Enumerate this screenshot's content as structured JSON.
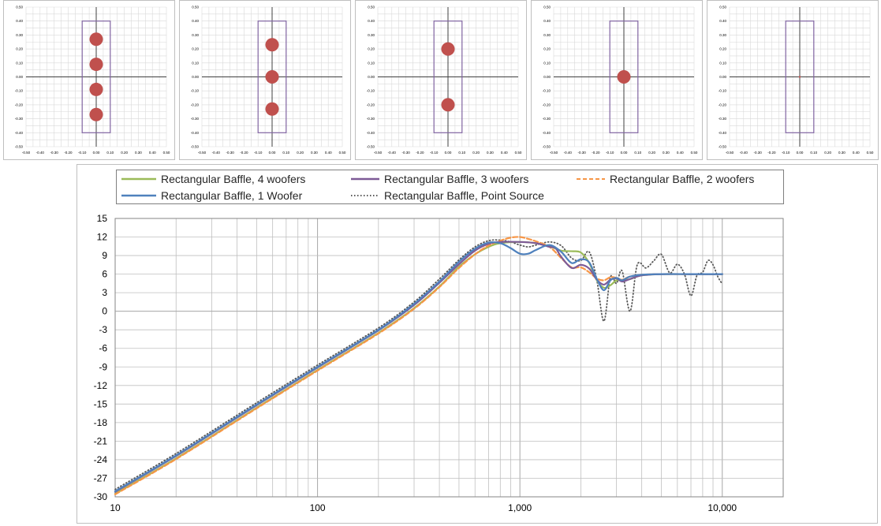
{
  "chart_data": [
    {
      "type": "scatter",
      "xlim": [
        -0.5,
        0.5
      ],
      "ylim": [
        -0.5,
        0.5
      ],
      "x_ticks": [
        "-0.50",
        "-0.40",
        "-0.30",
        "-0.20",
        "-0.10",
        "0.00",
        "0.10",
        "0.20",
        "0.30",
        "0.40",
        "0.50"
      ],
      "y_ticks": [
        "0.50",
        "0.40",
        "0.30",
        "0.20",
        "0.10",
        "0.00",
        "-0.10",
        "-0.20",
        "-0.30",
        "-0.40",
        "-0.50"
      ],
      "baffle_rect": {
        "x": [
          -0.1,
          0.1
        ],
        "y": [
          -0.4,
          0.4
        ]
      },
      "points": [
        {
          "x": 0,
          "y": 0.27
        },
        {
          "x": 0,
          "y": 0.09
        },
        {
          "x": 0,
          "y": -0.09
        },
        {
          "x": 0,
          "y": -0.27
        }
      ],
      "grid": true
    },
    {
      "type": "scatter",
      "xlim": [
        -0.5,
        0.5
      ],
      "ylim": [
        -0.5,
        0.5
      ],
      "x_ticks": [
        "-0.50",
        "-0.40",
        "-0.30",
        "-0.20",
        "-0.10",
        "0.00",
        "0.10",
        "0.20",
        "0.30",
        "0.40",
        "0.50"
      ],
      "y_ticks": [
        "0.50",
        "0.40",
        "0.30",
        "0.20",
        "0.10",
        "0.00",
        "-0.10",
        "-0.20",
        "-0.30",
        "-0.40",
        "-0.50"
      ],
      "baffle_rect": {
        "x": [
          -0.1,
          0.1
        ],
        "y": [
          -0.4,
          0.4
        ]
      },
      "points": [
        {
          "x": 0,
          "y": 0.23
        },
        {
          "x": 0,
          "y": 0.0
        },
        {
          "x": 0,
          "y": -0.23
        }
      ],
      "grid": true
    },
    {
      "type": "scatter",
      "xlim": [
        -0.5,
        0.5
      ],
      "ylim": [
        -0.5,
        0.5
      ],
      "x_ticks": [
        "-0.50",
        "-0.40",
        "-0.30",
        "-0.20",
        "-0.10",
        "0.00",
        "0.10",
        "0.20",
        "0.30",
        "0.40",
        "0.50"
      ],
      "y_ticks": [
        "0.50",
        "0.40",
        "0.30",
        "0.20",
        "0.10",
        "0.00",
        "-0.10",
        "-0.20",
        "-0.30",
        "-0.40",
        "-0.50"
      ],
      "baffle_rect": {
        "x": [
          -0.1,
          0.1
        ],
        "y": [
          -0.4,
          0.4
        ]
      },
      "points": [
        {
          "x": 0,
          "y": 0.2
        },
        {
          "x": 0,
          "y": -0.2
        }
      ],
      "grid": true
    },
    {
      "type": "scatter",
      "xlim": [
        -0.5,
        0.5
      ],
      "ylim": [
        -0.5,
        0.5
      ],
      "x_ticks": [
        "-0.50",
        "-0.40",
        "-0.30",
        "-0.20",
        "-0.10",
        "0.00",
        "0.10",
        "0.20",
        "0.30",
        "0.40",
        "0.50"
      ],
      "y_ticks": [
        "0.50",
        "0.40",
        "0.30",
        "0.20",
        "0.10",
        "0.00",
        "-0.10",
        "-0.20",
        "-0.30",
        "-0.40",
        "-0.50"
      ],
      "baffle_rect": {
        "x": [
          -0.1,
          0.1
        ],
        "y": [
          -0.4,
          0.4
        ]
      },
      "points": [
        {
          "x": 0,
          "y": 0.0
        }
      ],
      "grid": true
    },
    {
      "type": "scatter",
      "xlim": [
        -0.5,
        0.5
      ],
      "ylim": [
        -0.5,
        0.5
      ],
      "x_ticks": [
        "-0.50",
        "-0.40",
        "-0.30",
        "-0.20",
        "-0.10",
        "0.00",
        "0.10",
        "0.20",
        "0.30",
        "0.40",
        "0.50"
      ],
      "y_ticks": [
        "0.50",
        "0.40",
        "0.30",
        "0.20",
        "0.10",
        "0.00",
        "-0.10",
        "-0.20",
        "-0.30",
        "-0.40",
        "-0.50"
      ],
      "baffle_rect": {
        "x": [
          -0.1,
          0.1
        ],
        "y": [
          -0.4,
          0.4
        ]
      },
      "points": [],
      "grid": true
    },
    {
      "type": "line",
      "x_scale": "log",
      "xlim": [
        10,
        20000
      ],
      "ylim": [
        -30,
        15
      ],
      "x_tick_labels": [
        {
          "v": 10,
          "label": "10"
        },
        {
          "v": 100,
          "label": "100"
        },
        {
          "v": 1000,
          "label": "1,000"
        },
        {
          "v": 10000,
          "label": "10,000"
        }
      ],
      "y_ticks": [
        15,
        12,
        9,
        6,
        3,
        0,
        -3,
        -6,
        -9,
        -12,
        -15,
        -18,
        -21,
        -24,
        -27,
        -30
      ],
      "grid": true,
      "legend_position": "top",
      "legend": [
        {
          "name": "Rectangular Baffle, 4 woofers",
          "color": "#9bbb59",
          "dash": "solid"
        },
        {
          "name": "Rectangular Baffle, 3 woofers",
          "color": "#7d5a96",
          "dash": "solid"
        },
        {
          "name": "Rectangular Baffle, 2 woofers",
          "color": "#f79646",
          "dash": "dashed"
        },
        {
          "name": "Rectangular Baffle, 1 Woofer",
          "color": "#4f81bd",
          "dash": "solid"
        },
        {
          "name": "Rectangular Baffle, Point Source",
          "color": "#595959",
          "dash": "dotted"
        }
      ],
      "series": [
        {
          "name": "Rectangular Baffle, 4 woofers",
          "color": "#9bbb59",
          "dash": "solid",
          "points": [
            [
              10,
              -29.5
            ],
            [
              20,
              -23.8
            ],
            [
              50,
              -15.6
            ],
            [
              100,
              -9.5
            ],
            [
              200,
              -3.5
            ],
            [
              300,
              0.5
            ],
            [
              400,
              4
            ],
            [
              500,
              7.2
            ],
            [
              600,
              9.2
            ],
            [
              700,
              10.4
            ],
            [
              800,
              11
            ],
            [
              1000,
              11.2
            ],
            [
              1200,
              11
            ],
            [
              1400,
              10.5
            ],
            [
              1600,
              9.8
            ],
            [
              1800,
              9.7
            ],
            [
              2000,
              9.5
            ],
            [
              2200,
              7.8
            ],
            [
              2400,
              5
            ],
            [
              2600,
              3.8
            ],
            [
              2800,
              4.2
            ],
            [
              3000,
              5
            ],
            [
              3200,
              5
            ],
            [
              3500,
              5.2
            ],
            [
              4000,
              5.8
            ],
            [
              5000,
              6
            ],
            [
              7000,
              6
            ],
            [
              10000,
              6
            ]
          ]
        },
        {
          "name": "Rectangular Baffle, 3 woofers",
          "color": "#7d5a96",
          "dash": "solid",
          "points": [
            [
              10,
              -29.2
            ],
            [
              20,
              -23.4
            ],
            [
              50,
              -15.2
            ],
            [
              100,
              -9.1
            ],
            [
              200,
              -3.1
            ],
            [
              300,
              1
            ],
            [
              400,
              4.6
            ],
            [
              500,
              7.6
            ],
            [
              600,
              9.8
            ],
            [
              700,
              10.9
            ],
            [
              800,
              11.2
            ],
            [
              1000,
              11.2
            ],
            [
              1200,
              11
            ],
            [
              1400,
              10.4
            ],
            [
              1500,
              10.2
            ],
            [
              1600,
              8.8
            ],
            [
              1800,
              7
            ],
            [
              2000,
              7.5
            ],
            [
              2200,
              6.9
            ],
            [
              2400,
              5.1
            ],
            [
              2600,
              4.3
            ],
            [
              2800,
              5.1
            ],
            [
              3000,
              5.3
            ],
            [
              3200,
              4.8
            ],
            [
              3500,
              5.2
            ],
            [
              4000,
              5.8
            ],
            [
              5000,
              6
            ],
            [
              7000,
              6
            ],
            [
              10000,
              6
            ]
          ]
        },
        {
          "name": "Rectangular Baffle, 2 woofers",
          "color": "#f79646",
          "dash": "dashed",
          "points": [
            [
              10,
              -29.6
            ],
            [
              20,
              -23.9
            ],
            [
              50,
              -15.7
            ],
            [
              100,
              -9.6
            ],
            [
              200,
              -3.6
            ],
            [
              300,
              0.4
            ],
            [
              400,
              3.9
            ],
            [
              500,
              7
            ],
            [
              600,
              9.2
            ],
            [
              700,
              10.6
            ],
            [
              800,
              11.4
            ],
            [
              900,
              11.9
            ],
            [
              1000,
              12
            ],
            [
              1100,
              11.7
            ],
            [
              1200,
              11.3
            ],
            [
              1400,
              10.4
            ],
            [
              1600,
              8.6
            ],
            [
              1800,
              7.1
            ],
            [
              2000,
              7.1
            ],
            [
              2200,
              6.3
            ],
            [
              2400,
              5.3
            ],
            [
              2600,
              5
            ],
            [
              2800,
              5.5
            ],
            [
              3000,
              5.4
            ],
            [
              3200,
              5.1
            ],
            [
              3500,
              5.6
            ],
            [
              4000,
              5.9
            ],
            [
              5000,
              6
            ],
            [
              7000,
              6
            ],
            [
              10000,
              6
            ]
          ]
        },
        {
          "name": "Rectangular Baffle, 1 Woofer",
          "color": "#4f81bd",
          "dash": "solid",
          "points": [
            [
              10,
              -29.1
            ],
            [
              20,
              -23.3
            ],
            [
              50,
              -15.1
            ],
            [
              100,
              -9
            ],
            [
              200,
              -3
            ],
            [
              300,
              1.2
            ],
            [
              400,
              4.8
            ],
            [
              500,
              8
            ],
            [
              600,
              10.1
            ],
            [
              700,
              11.1
            ],
            [
              800,
              11
            ],
            [
              900,
              10.2
            ],
            [
              1000,
              9.3
            ],
            [
              1100,
              9.3
            ],
            [
              1200,
              9.9
            ],
            [
              1400,
              10.7
            ],
            [
              1600,
              9.6
            ],
            [
              1800,
              7.8
            ],
            [
              2000,
              8.4
            ],
            [
              2200,
              7.9
            ],
            [
              2400,
              5.2
            ],
            [
              2600,
              3.4
            ],
            [
              2800,
              5
            ],
            [
              3000,
              5.4
            ],
            [
              3200,
              5
            ],
            [
              3500,
              5.6
            ],
            [
              4000,
              5.9
            ],
            [
              5000,
              6
            ],
            [
              7000,
              6
            ],
            [
              10000,
              6
            ]
          ]
        },
        {
          "name": "Rectangular Baffle, Point Source",
          "color": "#595959",
          "dash": "dotted",
          "points": [
            [
              10,
              -28.8
            ],
            [
              20,
              -23
            ],
            [
              50,
              -14.8
            ],
            [
              100,
              -8.7
            ],
            [
              200,
              -2.7
            ],
            [
              300,
              1.5
            ],
            [
              400,
              5.2
            ],
            [
              500,
              8.3
            ],
            [
              600,
              10.4
            ],
            [
              700,
              11.4
            ],
            [
              800,
              11.5
            ],
            [
              900,
              11.2
            ],
            [
              1000,
              10.7
            ],
            [
              1100,
              10.4
            ],
            [
              1200,
              10.7
            ],
            [
              1400,
              11.2
            ],
            [
              1600,
              10.6
            ],
            [
              1800,
              8.6
            ],
            [
              2000,
              8.2
            ],
            [
              2200,
              9.6
            ],
            [
              2400,
              5
            ],
            [
              2600,
              -1.6
            ],
            [
              2800,
              5.5
            ],
            [
              3000,
              4.5
            ],
            [
              3200,
              6.5
            ],
            [
              3500,
              0
            ],
            [
              3800,
              7.5
            ],
            [
              4200,
              7
            ],
            [
              4600,
              8.2
            ],
            [
              5000,
              9.2
            ],
            [
              5500,
              6.2
            ],
            [
              6000,
              7.6
            ],
            [
              6500,
              6
            ],
            [
              7000,
              2.5
            ],
            [
              7500,
              5.8
            ],
            [
              8000,
              6.3
            ],
            [
              8500,
              8.2
            ],
            [
              9000,
              7.5
            ],
            [
              9500,
              5.6
            ],
            [
              10000,
              4.4
            ]
          ]
        }
      ]
    }
  ]
}
